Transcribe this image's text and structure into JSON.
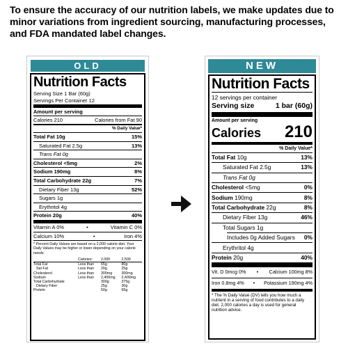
{
  "headline": "To ensure the accuracy of our nutrition labels, we make updates due to minor variations from ingredient sourcing, manufacturing processes, and FDA mandated label changes.",
  "old": {
    "banner": "OLD",
    "title": "Nutrition Facts",
    "serving_size": "Serving Size 1 Bar (60g)",
    "servings": "Servings Per Container 12",
    "amount_per_serving": "Amount per serving",
    "calories": "Calories 210",
    "calories_from_fat": "Calories from Fat 90",
    "dv_header": "% Daily Value*",
    "nutrients": [
      {
        "name": "Total Fat 10g",
        "dv": "15%"
      },
      {
        "name": "Saturated Fat 2.5g",
        "dv": "13%"
      },
      {
        "name": "Trans Fat 0g",
        "dv": ""
      },
      {
        "name": "Cholesterol <5mg",
        "dv": "2%"
      },
      {
        "name": "Sodium 190mg",
        "dv": "8%"
      },
      {
        "name": "Total Carbohydrate 22g",
        "dv": "7%"
      },
      {
        "name": "Dietary Fiber 13g",
        "dv": "52%"
      },
      {
        "name": "Sugars 1g",
        "dv": ""
      },
      {
        "name": "Erythritol 4g",
        "dv": ""
      },
      {
        "name": "Protein 20g",
        "dv": "40%"
      }
    ],
    "vitamins": [
      {
        "left": "Vitamin A 0%",
        "bullet": "•",
        "right": "Vitamin C 0%"
      },
      {
        "left": "Calcium 10%",
        "bullet": "•",
        "right": "Iron 4%"
      }
    ],
    "footnote": "* Percent Daily Values are based on a 2,000 calorie diet. Your Daily Values may be higher or lower depending on your calorie needs:",
    "dv_table": {
      "header": [
        "",
        "Calories:",
        "2,000",
        "2,500"
      ],
      "rows": [
        [
          "Total Fat",
          "Less than",
          "65g",
          "80g"
        ],
        [
          "Sat Fat",
          "Less than",
          "20g",
          "25g"
        ],
        [
          "Cholesterol",
          "Less than",
          "300mg",
          "300mg"
        ],
        [
          "Sodium",
          "Less than",
          "2,400mg",
          "2,400mg"
        ],
        [
          "Total Carbohydrate",
          "",
          "300g",
          "375g"
        ],
        [
          "Dietary Fiber",
          "",
          "25g",
          "30g"
        ],
        [
          "Protein",
          "",
          "50g",
          "65g"
        ]
      ]
    }
  },
  "new": {
    "banner": "NEW",
    "title": "Nutrition Facts",
    "servings": "12 servings per container",
    "serving_size_label": "Serving size",
    "serving_size_value": "1 bar (60g)",
    "amount_per_serving": "Amount per serving",
    "calories_label": "Calories",
    "calories_value": "210",
    "dv_header": "% Daily Value*",
    "nutrients": [
      {
        "name": "Total Fat",
        "amount": "10g",
        "dv": "13%"
      },
      {
        "name": "Saturated Fat 2.5g",
        "amount": "",
        "dv": "13%"
      },
      {
        "name": "Trans Fat 0g",
        "amount": "",
        "dv": ""
      },
      {
        "name": "Cholesterol",
        "amount": "<5mg",
        "dv": "0%"
      },
      {
        "name": "Sodium",
        "amount": "190mg",
        "dv": "8%"
      },
      {
        "name": "Total Carbohydrate",
        "amount": "22g",
        "dv": "8%"
      },
      {
        "name": "Dietary Fiber 13g",
        "amount": "",
        "dv": "46%"
      },
      {
        "name": "Total Sugars 1g",
        "amount": "",
        "dv": ""
      },
      {
        "name": "Includes 0g Added Sugars",
        "amount": "",
        "dv": "0%"
      },
      {
        "name": "Erythritol 4g",
        "amount": "",
        "dv": ""
      },
      {
        "name": "Protein",
        "amount": "20g",
        "dv": "40%"
      }
    ],
    "vitamins": [
      {
        "left": "Vit. D 0mcg 0%",
        "bullet": "•",
        "right": "Calcium 100mg 8%"
      },
      {
        "left": "Iron 0.8mg 4%",
        "bullet": "•",
        "right": "Potassium 190mg 4%"
      }
    ],
    "footnote": "* The % Daily Value (DV) tells you how much a nutrient in a serving of food contributes to a daily diet. 2,000 calories a day is used for general nutrition advice."
  }
}
